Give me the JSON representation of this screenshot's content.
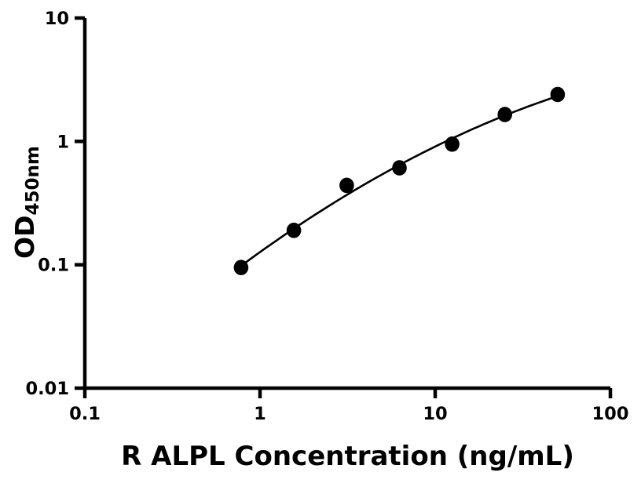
{
  "chart_data": {
    "type": "scatter",
    "title": "",
    "xlabel": "R ALPL Concentration (ng/mL)",
    "ylabel_main": "OD",
    "ylabel_sub": "450nm",
    "x": [
      0.78,
      1.56,
      3.125,
      6.25,
      12.5,
      25,
      50
    ],
    "y": [
      0.095,
      0.19,
      0.44,
      0.61,
      0.95,
      1.65,
      2.4
    ],
    "xscale": "log",
    "yscale": "log",
    "xlim": [
      0.1,
      100
    ],
    "ylim": [
      0.01,
      10
    ],
    "x_ticks": [
      "0.1",
      "1",
      "10",
      "100"
    ],
    "y_ticks": [
      "10",
      "1",
      "0.1",
      "0.01"
    ],
    "grid": false,
    "legend": null,
    "fit_curve": "smooth fitted curve through data points",
    "marker_color": "#000000",
    "line_color": "#000000",
    "axis_color": "#000000",
    "background_color": "#ffffff"
  }
}
